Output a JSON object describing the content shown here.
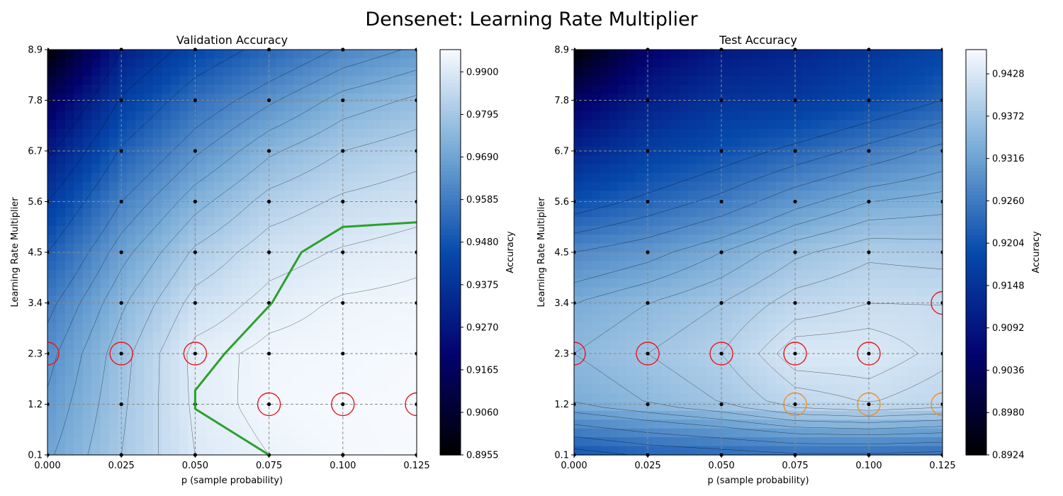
{
  "figure": {
    "title": "Densenet: Learning Rate Multiplier"
  },
  "chart_data": [
    {
      "type": "heatmap",
      "panel": "left",
      "title": "Validation Accuracy",
      "xlabel": "p (sample probability)",
      "ylabel": "Learning Rate Multiplier",
      "x_ticks": [
        "0.000",
        "0.025",
        "0.050",
        "0.075",
        "0.100",
        "0.125"
      ],
      "y_ticks": [
        "0.1",
        "1.2",
        "2.3",
        "3.4",
        "4.5",
        "5.6",
        "6.7",
        "7.8",
        "8.9"
      ],
      "xlim": [
        0,
        0.125
      ],
      "ylim": [
        0.1,
        8.9
      ],
      "x": [
        0,
        0.025,
        0.05,
        0.075,
        0.1,
        0.125
      ],
      "y": [
        0.1,
        1.2,
        2.3,
        3.4,
        4.5,
        5.6,
        6.7,
        7.8,
        8.9
      ],
      "z": [
        [
          0.969,
          0.98,
          0.99,
          0.993,
          0.9948,
          0.9952
        ],
        [
          0.966,
          0.979,
          0.991,
          0.9945,
          0.995,
          0.9952
        ],
        [
          0.963,
          0.978,
          0.9915,
          0.994,
          0.9945,
          0.995
        ],
        [
          0.958,
          0.974,
          0.987,
          0.9915,
          0.9935,
          0.994
        ],
        [
          0.95,
          0.968,
          0.981,
          0.988,
          0.9905,
          0.992
        ],
        [
          0.94,
          0.96,
          0.973,
          0.982,
          0.986,
          0.988
        ],
        [
          0.928,
          0.951,
          0.964,
          0.974,
          0.98,
          0.983
        ],
        [
          0.915,
          0.941,
          0.955,
          0.964,
          0.972,
          0.976
        ],
        [
          0.8955,
          0.93,
          0.944,
          0.953,
          0.961,
          0.966
        ]
      ],
      "colorbar": {
        "label": "Accuracy",
        "min": 0.8955,
        "max": 0.9955,
        "ticks": [
          "0.8955",
          "0.9060",
          "0.9165",
          "0.9270",
          "0.9375",
          "0.9480",
          "0.9585",
          "0.9690",
          "0.9795",
          "0.9900"
        ]
      },
      "contour_levels": [
        0.92,
        0.93,
        0.94,
        0.95,
        0.96,
        0.965,
        0.97,
        0.975,
        0.98,
        0.985,
        0.99,
        0.993
      ],
      "optimal_path": [
        [
          0.075,
          0.1
        ],
        [
          0.05,
          1.1
        ],
        [
          0.05,
          1.5
        ],
        [
          0.06,
          2.3
        ],
        [
          0.076,
          3.4
        ],
        [
          0.086,
          4.5
        ],
        [
          0.1,
          5.05
        ],
        [
          0.125,
          5.15
        ]
      ],
      "highlight_red": [
        [
          0,
          2.3
        ],
        [
          0.025,
          2.3
        ],
        [
          0.05,
          2.3
        ],
        [
          0.075,
          1.2
        ],
        [
          0.1,
          1.2
        ],
        [
          0.125,
          1.2
        ]
      ],
      "highlight_orange": [],
      "colors": {
        "path": "#2ca02c",
        "red": "#e8141a",
        "orange": "#f28c1c"
      }
    },
    {
      "type": "heatmap",
      "panel": "right",
      "title": "Test Accuracy",
      "xlabel": "p (sample probability)",
      "ylabel": "Learning Rate Multiplier",
      "x_ticks": [
        "0.000",
        "0.025",
        "0.050",
        "0.075",
        "0.100",
        "0.125"
      ],
      "y_ticks": [
        "0.1",
        "1.2",
        "2.3",
        "3.4",
        "4.5",
        "5.6",
        "6.7",
        "7.8",
        "8.9"
      ],
      "xlim": [
        0,
        0.125
      ],
      "ylim": [
        0.1,
        8.9
      ],
      "x": [
        0,
        0.025,
        0.05,
        0.075,
        0.1,
        0.125
      ],
      "y": [
        0.1,
        1.2,
        2.3,
        3.4,
        4.5,
        5.6,
        6.7,
        7.8,
        8.9
      ],
      "z": [
        [
          0.9205,
          0.9225,
          0.9235,
          0.9245,
          0.9245,
          0.924
        ],
        [
          0.933,
          0.935,
          0.937,
          0.94,
          0.941,
          0.94
        ],
        [
          0.935,
          0.937,
          0.939,
          0.943,
          0.943,
          0.9415
        ],
        [
          0.933,
          0.935,
          0.937,
          0.94,
          0.941,
          0.941
        ],
        [
          0.928,
          0.93,
          0.933,
          0.9365,
          0.9385,
          0.938
        ],
        [
          0.92,
          0.923,
          0.926,
          0.93,
          0.933,
          0.934
        ],
        [
          0.912,
          0.917,
          0.92,
          0.923,
          0.926,
          0.929
        ],
        [
          0.904,
          0.911,
          0.915,
          0.916,
          0.919,
          0.922
        ],
        [
          0.8924,
          0.905,
          0.91,
          0.912,
          0.915,
          0.918
        ]
      ],
      "colorbar": {
        "label": "Accuracy",
        "min": 0.8924,
        "max": 0.946,
        "ticks": [
          "0.8924",
          "0.8980",
          "0.9036",
          "0.9092",
          "0.9148",
          "0.9204",
          "0.9260",
          "0.9316",
          "0.9372",
          "0.9428"
        ]
      },
      "contour_levels": [
        0.922,
        0.925,
        0.928,
        0.931,
        0.933,
        0.935,
        0.937,
        0.939,
        0.941,
        0.942
      ],
      "optimal_path": [],
      "highlight_red": [
        [
          0,
          2.3
        ],
        [
          0.025,
          2.3
        ],
        [
          0.05,
          2.3
        ],
        [
          0.075,
          2.3
        ],
        [
          0.1,
          2.3
        ],
        [
          0.125,
          3.4
        ]
      ],
      "highlight_orange": [
        [
          0.075,
          1.2
        ],
        [
          0.1,
          1.2
        ],
        [
          0.125,
          1.2
        ]
      ],
      "colors": {
        "path": "#2ca02c",
        "red": "#e8141a",
        "orange": "#f28c1c"
      }
    }
  ]
}
